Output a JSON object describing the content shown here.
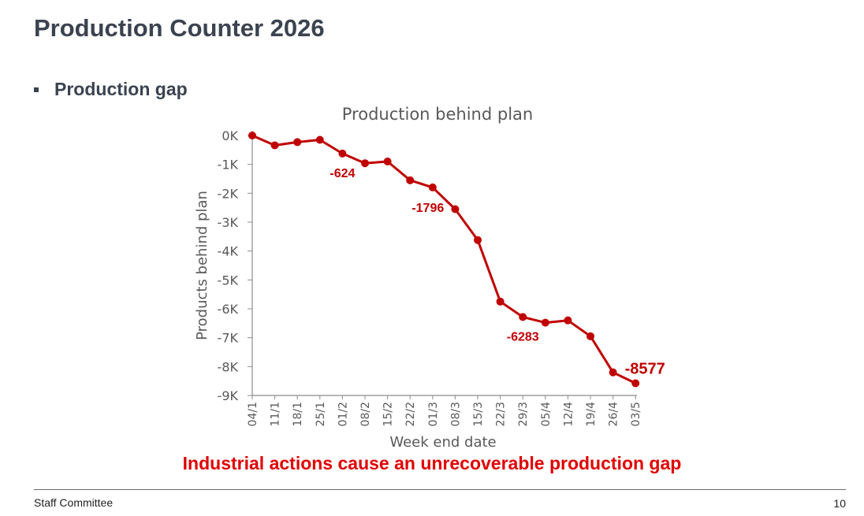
{
  "slide": {
    "title": "Production Counter 2026",
    "bullet": "Production gap",
    "conclusion": "Industrial actions cause an unrecoverable production gap",
    "footer_left": "Staff Committee",
    "page_number": "10"
  },
  "colors": {
    "series": "#c00000",
    "conclusion": "#e00000",
    "title": "#3b4350"
  },
  "chart_data": {
    "type": "line",
    "title": "Production behind plan",
    "xlabel": "Week end date",
    "ylabel": "Products behind plan",
    "ylim": [
      -9000,
      0
    ],
    "yticks": [
      {
        "value": 0,
        "label": "0K"
      },
      {
        "value": -1000,
        "label": "-1K"
      },
      {
        "value": -2000,
        "label": "-2K"
      },
      {
        "value": -3000,
        "label": "-3K"
      },
      {
        "value": -4000,
        "label": "-4K"
      },
      {
        "value": -5000,
        "label": "-5K"
      },
      {
        "value": -6000,
        "label": "-6K"
      },
      {
        "value": -7000,
        "label": "-7K"
      },
      {
        "value": -8000,
        "label": "-8K"
      },
      {
        "value": -9000,
        "label": "-9K"
      }
    ],
    "grid": false,
    "legend": "none",
    "categories": [
      "04/1",
      "11/1",
      "18/1",
      "25/1",
      "01/2",
      "08/2",
      "15/2",
      "22/2",
      "01/3",
      "08/3",
      "15/3",
      "22/3",
      "29/3",
      "05/4",
      "12/4",
      "19/4",
      "26/4",
      "03/5"
    ],
    "values": [
      0,
      -340,
      -230,
      -150,
      -624,
      -960,
      -900,
      -1550,
      -1796,
      -2550,
      -3620,
      -5750,
      -6283,
      -6480,
      -6400,
      -6950,
      -8200,
      -8577
    ],
    "data_labels": [
      {
        "index": 4,
        "text": "-624",
        "position": "below"
      },
      {
        "index": 8,
        "text": "-1796",
        "position": "below-left"
      },
      {
        "index": 12,
        "text": "-6283",
        "position": "below"
      },
      {
        "index": 17,
        "text": "-8577",
        "position": "above",
        "emphasis": true
      }
    ]
  }
}
